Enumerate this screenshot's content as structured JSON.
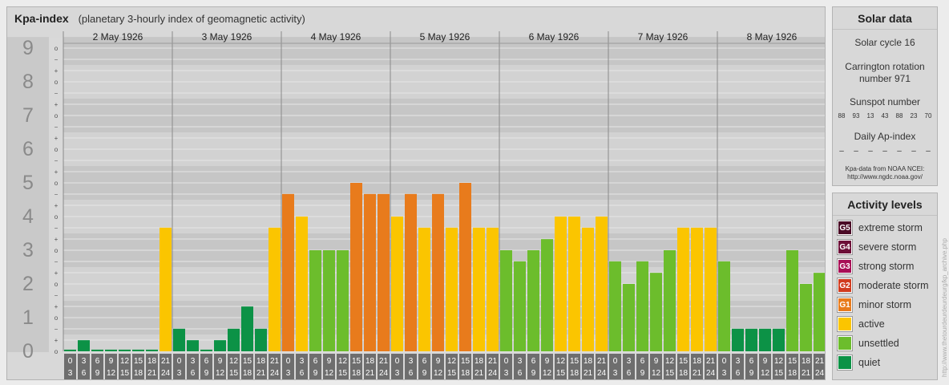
{
  "header": {
    "title": "Kpa-index",
    "subtitle": "(planetary 3-hourly index of geomagnetic activity)"
  },
  "chart_data": {
    "type": "bar",
    "title": "Kpa-index",
    "subtitle": "(planetary 3-hourly index of geomagnetic activity)",
    "ylim": [
      0,
      9.33
    ],
    "y_major_labels": [
      "0",
      "1",
      "2",
      "3",
      "4",
      "5",
      "6",
      "7",
      "8",
      "9"
    ],
    "y_minor_labels": [
      "o",
      "+",
      "−"
    ],
    "days": [
      "2 May 1926",
      "3 May 1926",
      "4 May 1926",
      "5 May 1926",
      "6 May 1926",
      "7 May 1926",
      "8 May 1926"
    ],
    "interval_labels": [
      [
        "0",
        "3"
      ],
      [
        "3",
        "6"
      ],
      [
        "6",
        "9"
      ],
      [
        "9",
        "12"
      ],
      [
        "12",
        "15"
      ],
      [
        "15",
        "18"
      ],
      [
        "18",
        "21"
      ],
      [
        "21",
        "24"
      ]
    ],
    "values": [
      [
        0.05,
        0.33,
        0.05,
        0.05,
        0.05,
        0.05,
        0.05,
        3.67
      ],
      [
        0.67,
        0.33,
        0.05,
        0.33,
        0.67,
        1.33,
        0.67,
        3.67
      ],
      [
        4.67,
        4.0,
        3.0,
        3.0,
        3.0,
        5.0,
        4.67,
        4.67
      ],
      [
        4.0,
        4.67,
        3.67,
        4.67,
        3.67,
        5.0,
        3.67,
        3.67
      ],
      [
        3.0,
        2.67,
        3.0,
        3.33,
        4.0,
        4.0,
        3.67,
        4.0
      ],
      [
        2.67,
        2.0,
        2.67,
        2.33,
        3.0,
        3.67,
        3.67,
        3.67
      ],
      [
        2.67,
        0.67,
        0.67,
        0.67,
        0.67,
        3.0,
        2.0,
        2.33
      ]
    ],
    "series_colors": {
      "quiet": "#0c9246",
      "unsettled": "#6cbd2c",
      "active": "#fbc500",
      "minor": "#e87b1c",
      "moderate": "#d13b1f",
      "strong": "#a80f56",
      "severe": "#6d0f38",
      "extreme": "#4a0b26"
    },
    "grid": true,
    "legend": "right"
  },
  "solar": {
    "title": "Solar data",
    "cycle": "Solar cycle 16",
    "carrington": "Carrington rotation number 971",
    "sunspot_label": "Sunspot number",
    "sunspots": [
      "88",
      "93",
      "13",
      "43",
      "88",
      "23",
      "70"
    ],
    "ap_label": "Daily Ap-index",
    "ap_values": [
      "–",
      "–",
      "–",
      "–",
      "–",
      "–",
      "–"
    ],
    "source_line1": "Kpa-data from NOAA NCEI:",
    "source_line2": "http://www.ngdc.noaa.gov/"
  },
  "levels": {
    "title": "Activity levels",
    "items": [
      {
        "code": "G5",
        "label": "extreme storm",
        "color": "#4a0b26"
      },
      {
        "code": "G4",
        "label": "severe storm",
        "color": "#6d0f38"
      },
      {
        "code": "G3",
        "label": "strong storm",
        "color": "#a80f56"
      },
      {
        "code": "G2",
        "label": "moderate storm",
        "color": "#d13b1f"
      },
      {
        "code": "G1",
        "label": "minor storm",
        "color": "#e87b1c"
      },
      {
        "code": "",
        "label": "active",
        "color": "#fbc500"
      },
      {
        "code": "",
        "label": "unsettled",
        "color": "#6cbd2c"
      },
      {
        "code": "",
        "label": "quiet",
        "color": "#0c9246"
      }
    ]
  },
  "credit": "http://www.thetourdeurdeurdeurg/kp_archive.php"
}
